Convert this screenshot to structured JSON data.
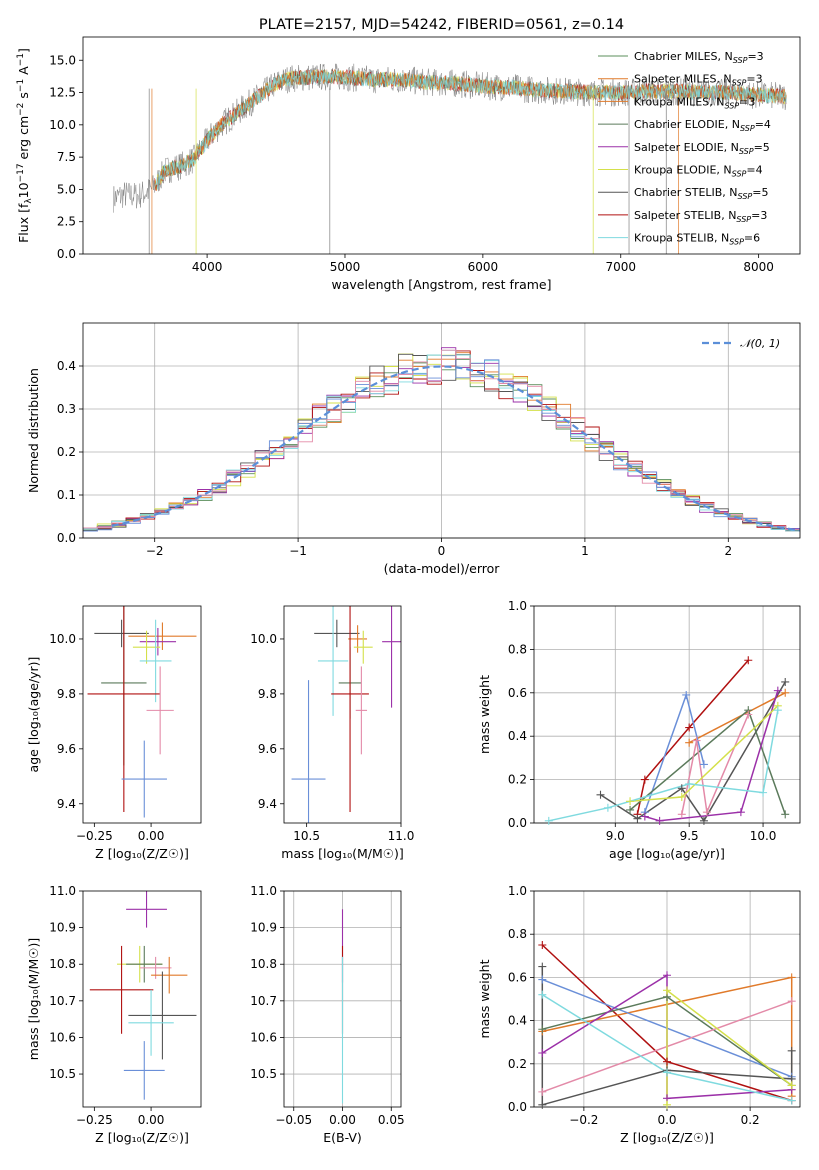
{
  "colors": {
    "Chabrier MILES": "#5b8f5b",
    "Salpeter MILES": "#e07a2a",
    "Kroupa MILES": "#e07a2a",
    "Chabrier ELODIE": "#5b7a5b",
    "Salpeter ELODIE": "#9b30a8",
    "Kroupa ELODIE": "#d4e04a",
    "Chabrier STELIB": "#555555",
    "Salpeter STELIB": "#b01010",
    "Kroupa STELIB": "#7fdadf",
    "blue": "#6a8fd8",
    "pink": "#e38aa8",
    "gray_spec": "#808080"
  },
  "chart_data": [
    {
      "id": "spectrum",
      "type": "line",
      "title": "PLATE=2157, MJD=54242, FIBERID=0561, z=0.14",
      "xlabel": "wavelength [Angstrom, rest frame]",
      "ylabel": "Flux [f",
      "ylabel_sub": "λ",
      "ylabel_rest": "10",
      "ylabel_exp1": "−17",
      "ylabel_mid": " erg cm",
      "ylabel_exp2": "−2",
      "ylabel_s": " s",
      "ylabel_exp3": "−1",
      "ylabel_A": " A",
      "ylabel_exp4": "−1",
      "ylabel_end": "]",
      "xlim": [
        3100,
        8300
      ],
      "ylim": [
        0,
        16.8
      ],
      "xticks": [
        "4000",
        "5000",
        "6000",
        "7000",
        "8000"
      ],
      "xtick_values": [
        4000,
        5000,
        6000,
        7000,
        8000
      ],
      "yticks": [
        "0.0",
        "2.5",
        "5.0",
        "7.5",
        "10.0",
        "12.5",
        "15.0"
      ],
      "ytick_values": [
        0,
        2.5,
        5,
        7.5,
        10,
        12.5,
        15
      ],
      "continuum": {
        "x": [
          3320,
          3400,
          3500,
          3600,
          3700,
          3800,
          3900,
          4000,
          4100,
          4200,
          4300,
          4400,
          4500,
          4600,
          4800,
          5000,
          5200,
          5400,
          5600,
          5800,
          6000,
          6200,
          6400,
          6600,
          6800,
          7000,
          7200,
          7400,
          7600,
          7800,
          8000,
          8200
        ],
        "y": [
          4.3,
          4.6,
          4.5,
          5.0,
          6.5,
          6.8,
          7.3,
          8.8,
          10.0,
          10.8,
          11.6,
          12.4,
          13.2,
          13.6,
          13.7,
          13.7,
          13.5,
          13.5,
          13.3,
          13.2,
          13.0,
          12.9,
          12.7,
          12.6,
          12.5,
          12.5,
          12.6,
          12.6,
          12.5,
          12.5,
          12.3,
          12.2
        ]
      },
      "legend": [
        {
          "base": "Chabrier MILES, N",
          "sub": "SSP",
          "tail": "=3"
        },
        {
          "base": "Salpeter MILES, N",
          "sub": "SSP",
          "tail": "=3"
        },
        {
          "base": "Kroupa MILES, N",
          "sub": "SSP",
          "tail": "=3"
        },
        {
          "base": "Chabrier ELODIE, N",
          "sub": "SSP",
          "tail": "=4"
        },
        {
          "base": "Salpeter ELODIE, N",
          "sub": "SSP",
          "tail": "=5"
        },
        {
          "base": "Kroupa ELODIE, N",
          "sub": "SSP",
          "tail": "=4"
        },
        {
          "base": "Chabrier STELIB, N",
          "sub": "SSP",
          "tail": "=5"
        },
        {
          "base": "Salpeter STELIB, N",
          "sub": "SSP",
          "tail": "=3"
        },
        {
          "base": "Kroupa STELIB, N",
          "sub": "SSP",
          "tail": "=6"
        }
      ],
      "legend_placement": "upper-right",
      "grid": false
    },
    {
      "id": "residuals",
      "type": "step",
      "xlabel": "(data-model)/error",
      "ylabel": "Normed distribution",
      "xlim": [
        -2.5,
        2.5
      ],
      "ylim": [
        0,
        0.5
      ],
      "xticks": [
        "−2",
        "−1",
        "0",
        "1",
        "2"
      ],
      "xtick_values": [
        -2,
        -1,
        0,
        1,
        2
      ],
      "yticks": [
        "0.0",
        "0.1",
        "0.2",
        "0.3",
        "0.4"
      ],
      "ytick_values": [
        0,
        0.1,
        0.2,
        0.3,
        0.4
      ],
      "legend": "𝒩(0, 1)",
      "legend_placement": "upper-right",
      "bin_width": 0.1,
      "grid": true
    },
    {
      "id": "age_vs_Z",
      "type": "errorbar",
      "xlabel": "Z [log₁₀(Z/Z☉)]",
      "ylabel": "age  [log₁₀(age/yr)]",
      "xlim": [
        -0.3,
        0.22
      ],
      "ylim": [
        9.33,
        10.12
      ],
      "xticks": [
        "−0.25",
        "0.00"
      ],
      "xtick_values": [
        -0.25,
        0.0
      ],
      "yticks": [
        "9.4",
        "9.6",
        "9.8",
        "10.0"
      ],
      "ytick_values": [
        9.4,
        9.6,
        9.8,
        10.0
      ],
      "points": [
        {
          "x": -0.13,
          "xe": 0.12,
          "y": 10.02,
          "ye": 0.05,
          "c": "Chabrier STELIB"
        },
        {
          "x": 0.05,
          "xe": 0.15,
          "y": 10.01,
          "ye": 0.05,
          "c": "Salpeter MILES"
        },
        {
          "x": 0.03,
          "xe": 0.08,
          "y": 9.99,
          "ye": 0.05,
          "c": "Salpeter ELODIE"
        },
        {
          "x": -0.02,
          "xe": 0.06,
          "y": 9.97,
          "ye": 0.06,
          "c": "Kroupa ELODIE"
        },
        {
          "x": 0.02,
          "xe": 0.07,
          "y": 9.92,
          "ye": 0.15,
          "c": "Kroupa STELIB"
        },
        {
          "x": -0.12,
          "xe": 0.1,
          "y": 9.84,
          "ye": 0.3,
          "c": "Chabrier ELODIE"
        },
        {
          "x": -0.12,
          "xe": 0.16,
          "y": 9.8,
          "ye": 0.43,
          "c": "Salpeter STELIB"
        },
        {
          "x": 0.04,
          "xe": 0.06,
          "y": 9.74,
          "ye": 0.16,
          "c": "pink"
        },
        {
          "x": -0.03,
          "xe": 0.1,
          "y": 9.49,
          "ye": 0.14,
          "c": "blue"
        }
      ]
    },
    {
      "id": "age_vs_mass",
      "type": "errorbar",
      "xlabel": "mass [log₁₀(M/M☉)]",
      "ylabel": "",
      "xlim": [
        10.38,
        11.0
      ],
      "ylim": [
        9.33,
        10.12
      ],
      "xticks": [
        "10.5",
        "11.0"
      ],
      "xtick_values": [
        10.5,
        11.0
      ],
      "yticks": [
        "9.4",
        "9.6",
        "9.8",
        "10.0"
      ],
      "ytick_values": [
        9.4,
        9.6,
        9.8,
        10.0
      ],
      "points": [
        {
          "x": 10.66,
          "xe": 0.12,
          "y": 10.02,
          "ye": 0.05,
          "c": "Chabrier STELIB"
        },
        {
          "x": 10.77,
          "xe": 0.05,
          "y": 10.0,
          "ye": 0.05,
          "c": "Salpeter MILES"
        },
        {
          "x": 10.95,
          "xe": 0.05,
          "y": 9.99,
          "ye": 0.24,
          "c": "Salpeter ELODIE"
        },
        {
          "x": 10.8,
          "xe": 0.05,
          "y": 9.97,
          "ye": 0.06,
          "c": "Kroupa ELODIE"
        },
        {
          "x": 10.64,
          "xe": 0.08,
          "y": 9.92,
          "ye": 0.2,
          "c": "Kroupa STELIB"
        },
        {
          "x": 10.73,
          "xe": 0.06,
          "y": 9.84,
          "ye": 0.13,
          "c": "Chabrier ELODIE"
        },
        {
          "x": 10.73,
          "xe": 0.1,
          "y": 9.8,
          "ye": 0.43,
          "c": "Salpeter STELIB"
        },
        {
          "x": 10.79,
          "xe": 0.03,
          "y": 9.74,
          "ye": 0.16,
          "c": "pink"
        },
        {
          "x": 10.51,
          "xe": 0.09,
          "y": 9.49,
          "ye": 0.36,
          "c": "blue"
        }
      ]
    },
    {
      "id": "weight_vs_age",
      "type": "line",
      "xlabel": "age  [log₁₀(age/yr)]",
      "ylabel": "mass weight",
      "xlim": [
        8.45,
        10.25
      ],
      "ylim": [
        0,
        1.0
      ],
      "xticks": [
        "9.0",
        "9.5",
        "10.0"
      ],
      "xtick_values": [
        9.0,
        9.5,
        10.0
      ],
      "yticks": [
        "0.0",
        "0.2",
        "0.4",
        "0.6",
        "0.8",
        "1.0"
      ],
      "ytick_values": [
        0,
        0.2,
        0.4,
        0.6,
        0.8,
        1.0
      ],
      "grid": true,
      "series": [
        {
          "c": "Salpeter STELIB",
          "x": [
            9.15,
            9.2,
            9.5,
            9.9
          ],
          "y": [
            0.04,
            0.2,
            0.44,
            0.75
          ]
        },
        {
          "c": "Salpeter MILES",
          "x": [
            9.5,
            10.15
          ],
          "y": [
            0.37,
            0.6
          ]
        },
        {
          "c": "blue",
          "x": [
            9.2,
            9.48,
            9.6
          ],
          "y": [
            0.05,
            0.59,
            0.27
          ]
        },
        {
          "c": "Chabrier STELIB",
          "x": [
            8.9,
            9.15,
            9.45,
            9.6,
            10.15
          ],
          "y": [
            0.13,
            0.02,
            0.16,
            0.01,
            0.65
          ]
        },
        {
          "c": "Chabrier ELODIE",
          "x": [
            9.1,
            9.9,
            10.15
          ],
          "y": [
            0.06,
            0.52,
            0.04
          ]
        },
        {
          "c": "Salpeter ELODIE",
          "x": [
            9.2,
            9.3,
            9.85,
            10.1
          ],
          "y": [
            0.03,
            0.01,
            0.05,
            0.61
          ]
        },
        {
          "c": "pink",
          "x": [
            9.45,
            9.55,
            9.62,
            9.9
          ],
          "y": [
            0.04,
            0.38,
            0.05,
            0.5
          ]
        },
        {
          "c": "Kroupa ELODIE",
          "x": [
            9.1,
            9.45,
            10.1
          ],
          "y": [
            0.1,
            0.12,
            0.54
          ]
        },
        {
          "c": "Kroupa STELIB",
          "x": [
            8.55,
            8.95,
            9.5,
            10.0,
            10.1
          ],
          "y": [
            0.01,
            0.07,
            0.18,
            0.14,
            0.52
          ]
        }
      ]
    },
    {
      "id": "mass_vs_Z",
      "type": "errorbar",
      "xlabel": "Z [log₁₀(Z/Z☉)]",
      "ylabel": "mass [log₁₀(M/M☉)]",
      "xlim": [
        -0.3,
        0.22
      ],
      "ylim": [
        10.41,
        11.0
      ],
      "xticks": [
        "−0.25",
        "0.00"
      ],
      "xtick_values": [
        -0.25,
        0.0
      ],
      "yticks": [
        "10.5",
        "10.6",
        "10.7",
        "10.8",
        "10.9",
        "11.0"
      ],
      "ytick_values": [
        10.5,
        10.6,
        10.7,
        10.8,
        10.9,
        11.0
      ],
      "points": [
        {
          "x": -0.02,
          "xe": 0.09,
          "y": 10.95,
          "ye": 0.05,
          "c": "Salpeter ELODIE"
        },
        {
          "x": -0.05,
          "xe": 0.1,
          "y": 10.8,
          "ye": 0.05,
          "c": "Kroupa ELODIE"
        },
        {
          "x": -0.03,
          "xe": 0.08,
          "y": 10.8,
          "ye": 0.05,
          "c": "Chabrier ELODIE"
        },
        {
          "x": 0.02,
          "xe": 0.07,
          "y": 10.79,
          "ye": 0.03,
          "c": "pink"
        },
        {
          "x": 0.08,
          "xe": 0.08,
          "y": 10.77,
          "ye": 0.05,
          "c": "Salpeter MILES"
        },
        {
          "x": -0.13,
          "xe": 0.14,
          "y": 10.73,
          "ye": 0.12,
          "c": "Salpeter STELIB"
        },
        {
          "x": 0.05,
          "xe": 0.15,
          "y": 10.66,
          "ye": 0.12,
          "c": "Chabrier STELIB"
        },
        {
          "x": 0.0,
          "xe": 0.1,
          "y": 10.64,
          "ye": 0.09,
          "c": "Kroupa STELIB"
        },
        {
          "x": -0.03,
          "xe": 0.09,
          "y": 10.51,
          "ye": 0.08,
          "c": "blue"
        }
      ]
    },
    {
      "id": "mass_vs_ebv",
      "type": "errorbar",
      "xlabel": "E(B-V)",
      "ylabel": "",
      "xlim": [
        -0.06,
        0.06
      ],
      "ylim": [
        10.41,
        11.0
      ],
      "xticks": [
        "−0.05",
        "0.00",
        "0.05"
      ],
      "xtick_values": [
        -0.05,
        0.0,
        0.05
      ],
      "yticks": [
        "10.5",
        "10.6",
        "10.7",
        "10.8",
        "10.9",
        "11.0"
      ],
      "ytick_values": [
        10.5,
        10.6,
        10.7,
        10.8,
        10.9,
        11.0
      ],
      "grid": true,
      "points": [
        {
          "x": 0.0,
          "xe": 0.0,
          "y": 10.85,
          "ye": 0.1,
          "c": "Salpeter ELODIE"
        },
        {
          "x": 0.0,
          "xe": 0.0,
          "y": 10.73,
          "ye": 0.12,
          "c": "Salpeter STELIB"
        },
        {
          "x": 0.0,
          "xe": 0.0,
          "y": 10.62,
          "ye": 0.2,
          "c": "Kroupa STELIB"
        }
      ]
    },
    {
      "id": "weight_vs_Z",
      "type": "line",
      "xlabel": "Z [log₁₀(Z/Z☉)]",
      "ylabel": "mass weight",
      "xlim": [
        -0.32,
        0.32
      ],
      "ylim": [
        0,
        1.0
      ],
      "xticks": [
        "−0.2",
        "0.0",
        "0.2"
      ],
      "xtick_values": [
        -0.2,
        0.0,
        0.2
      ],
      "yticks": [
        "0.0",
        "0.2",
        "0.4",
        "0.6",
        "0.8",
        "1.0"
      ],
      "ytick_values": [
        0,
        0.2,
        0.4,
        0.6,
        0.8,
        1.0
      ],
      "grid": true,
      "series": [
        {
          "c": "Salpeter STELIB",
          "x": [
            -0.3,
            0.0,
            0.3
          ],
          "y": [
            0.75,
            0.21,
            0.03
          ]
        },
        {
          "c": "Salpeter MILES",
          "x": [
            -0.3,
            0.3,
            0.3
          ],
          "y": [
            0.35,
            0.6,
            0.05
          ]
        },
        {
          "c": "blue",
          "x": [
            -0.3,
            0.3
          ],
          "y": [
            0.59,
            0.14
          ]
        },
        {
          "c": "Chabrier STELIB",
          "x": [
            -0.3,
            -0.3,
            0.0,
            0.3,
            0.3
          ],
          "y": [
            0.65,
            0.01,
            0.17,
            0.13,
            0.26
          ]
        },
        {
          "c": "Chabrier ELODIE",
          "x": [
            -0.3,
            0.0,
            0.3
          ],
          "y": [
            0.36,
            0.51,
            0.1
          ]
        },
        {
          "c": "Salpeter ELODIE",
          "x": [
            -0.3,
            0.0,
            0.0,
            0.3
          ],
          "y": [
            0.25,
            0.61,
            0.04,
            0.08
          ]
        },
        {
          "c": "pink",
          "x": [
            -0.3,
            0.3
          ],
          "y": [
            0.07,
            0.49
          ]
        },
        {
          "c": "Kroupa ELODIE",
          "x": [
            0.0,
            0.0,
            0.3
          ],
          "y": [
            0.01,
            0.54,
            0.1
          ]
        },
        {
          "c": "Kroupa STELIB",
          "x": [
            -0.3,
            0.0,
            0.3
          ],
          "y": [
            0.52,
            0.16,
            0.03
          ]
        }
      ]
    }
  ]
}
